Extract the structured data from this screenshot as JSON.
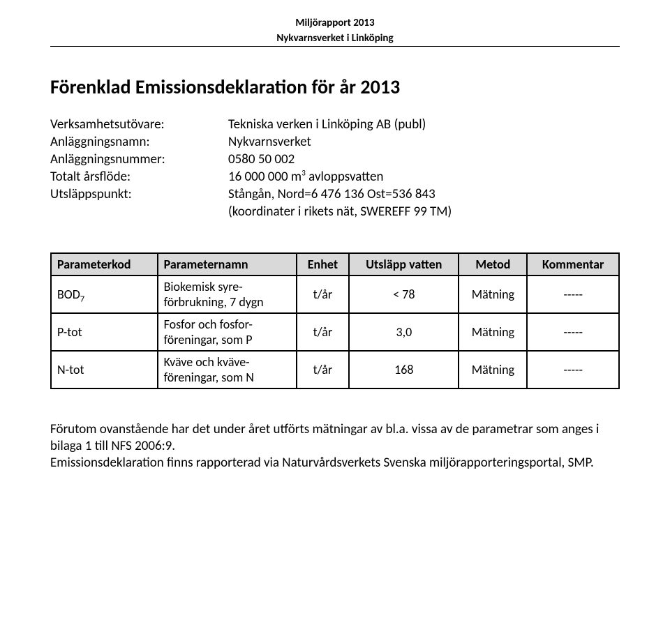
{
  "header": {
    "line1": "Miljörapport 2013",
    "line2": "Nykvarnsverket i Linköping"
  },
  "title": "Förenklad Emissionsdeklaration för år 2013",
  "info": {
    "rows": [
      {
        "label": "Verksamhetsutövare:",
        "value": "Tekniska verken i Linköping AB (publ)"
      },
      {
        "label": "Anläggningsnamn:",
        "value": "Nykvarnsverket"
      },
      {
        "label": "Anläggningsnummer:",
        "value": "0580 50 002"
      },
      {
        "label": "Totalt årsflöde:",
        "value_prefix": "16 000 000 m",
        "value_sup": "3",
        "value_suffix": " avloppsvatten"
      },
      {
        "label": "Utsläppspunkt:",
        "value": "Stångån, Nord=6 476 136  Ost=536 843"
      },
      {
        "label": "",
        "value": "(koordinater i rikets nät, SWEREFF 99 TM)"
      }
    ]
  },
  "table": {
    "columns": [
      "Parameterkod",
      "Parameternamn",
      "Enhet",
      "Utsläpp vatten",
      "Metod",
      "Kommentar"
    ],
    "column_aligns": [
      "left",
      "left",
      "center",
      "center",
      "center",
      "center"
    ],
    "header_bg": "#d9d9d9",
    "border_color": "#000000",
    "rows": [
      {
        "code_prefix": "BOD",
        "code_sub": "7",
        "name": "Biokemisk syre-\nförbrukning, 7 dygn",
        "unit": "t/år",
        "value": "< 78",
        "method": "Mätning",
        "comment": "-----"
      },
      {
        "code_prefix": "P-tot",
        "code_sub": "",
        "name": "Fosfor och fosfor-\nföreningar, som P",
        "unit": "t/år",
        "value": "3,0",
        "method": "Mätning",
        "comment": "-----"
      },
      {
        "code_prefix": "N-tot",
        "code_sub": "",
        "name": "Kväve och kväve-\nföreningar, som N",
        "unit": "t/år",
        "value": "168",
        "method": "Mätning",
        "comment": "-----"
      }
    ]
  },
  "body": {
    "para1": "Förutom ovanstående har det under året utförts mätningar av bl.a. vissa av de parametrar som anges i bilaga 1 till NFS 2006:9.",
    "para2": "Emissionsdeklaration finns rapporterad via Naturvårdsverkets Svenska miljörapporteringsportal, SMP."
  }
}
